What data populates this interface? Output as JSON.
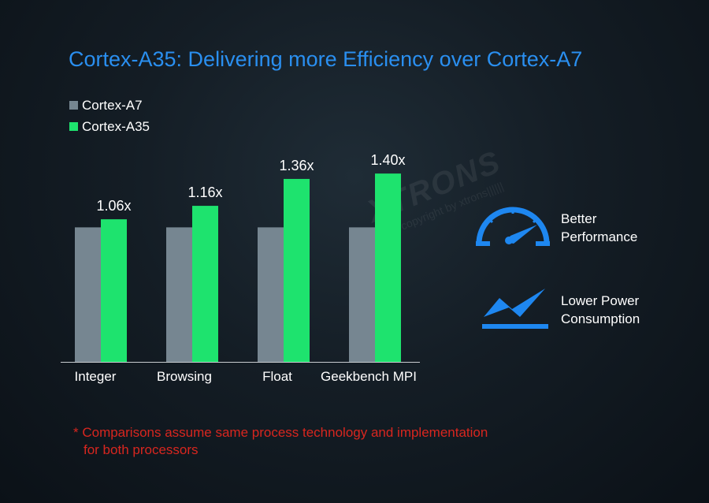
{
  "title": "Cortex-A35: Delivering more Efficiency over Cortex-A7",
  "colors": {
    "title": "#2a8ff0",
    "baseline_series": "#768691",
    "highlight_series": "#1ee36e",
    "icon_blue": "#1e87f0",
    "footnote": "#d8261f"
  },
  "chart_data": {
    "type": "bar",
    "categories": [
      "Integer",
      "Browsing",
      "Float",
      "Geekbench MPI"
    ],
    "series": [
      {
        "name": "Cortex-A7",
        "values": [
          1.0,
          1.0,
          1.0,
          1.0
        ]
      },
      {
        "name": "Cortex-A35",
        "values": [
          1.06,
          1.16,
          1.36,
          1.4
        ]
      }
    ],
    "data_labels": [
      "1.06x",
      "1.16x",
      "1.36x",
      "1.40x"
    ],
    "ylim": [
      0,
      1.6
    ],
    "grid": false,
    "legend": "top-left"
  },
  "features": [
    {
      "icon": "speedometer-icon",
      "lines": [
        "Better",
        "Performance"
      ]
    },
    {
      "icon": "lightning-icon",
      "lines": [
        "Lower Power",
        "Consumption"
      ]
    }
  ],
  "footnote": {
    "line1": "* Comparisons assume same process technology and implementation",
    "line2": "for both processors"
  },
  "watermark": {
    "brand": "XTRONS",
    "copy": "|||||| copyright by xtrons||||||"
  }
}
